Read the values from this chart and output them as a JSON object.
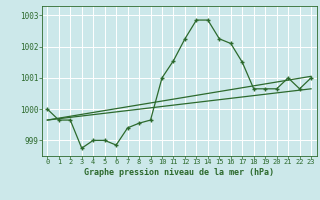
{
  "title": "Graphe pression niveau de la mer (hPa)",
  "background_color": "#cce8ea",
  "grid_color": "#b0d8dc",
  "line_color": "#2d6a2d",
  "marker_color": "#2d6a2d",
  "xlim": [
    -0.5,
    23.5
  ],
  "ylim": [
    998.5,
    1003.3
  ],
  "yticks": [
    999,
    1000,
    1001,
    1002,
    1003
  ],
  "xticks": [
    0,
    1,
    2,
    3,
    4,
    5,
    6,
    7,
    8,
    9,
    10,
    11,
    12,
    13,
    14,
    15,
    16,
    17,
    18,
    19,
    20,
    21,
    22,
    23
  ],
  "series1_x": [
    0,
    1,
    2,
    3,
    4,
    5,
    6,
    7,
    8,
    9,
    10,
    11,
    12,
    13,
    14,
    15,
    16,
    17,
    18,
    19,
    20,
    21,
    22,
    23
  ],
  "series1_y": [
    1000.0,
    999.65,
    999.65,
    998.75,
    999.0,
    999.0,
    998.85,
    999.4,
    999.55,
    999.65,
    1001.0,
    1001.55,
    1002.25,
    1002.85,
    1002.85,
    1002.25,
    1002.1,
    1001.5,
    1000.65,
    1000.65,
    1000.65,
    1001.0,
    1000.65,
    1001.0
  ],
  "series2_x": [
    0,
    23
  ],
  "series2_y": [
    999.65,
    1001.05
  ],
  "series3_x": [
    0,
    23
  ],
  "series3_y": [
    999.65,
    1000.65
  ]
}
